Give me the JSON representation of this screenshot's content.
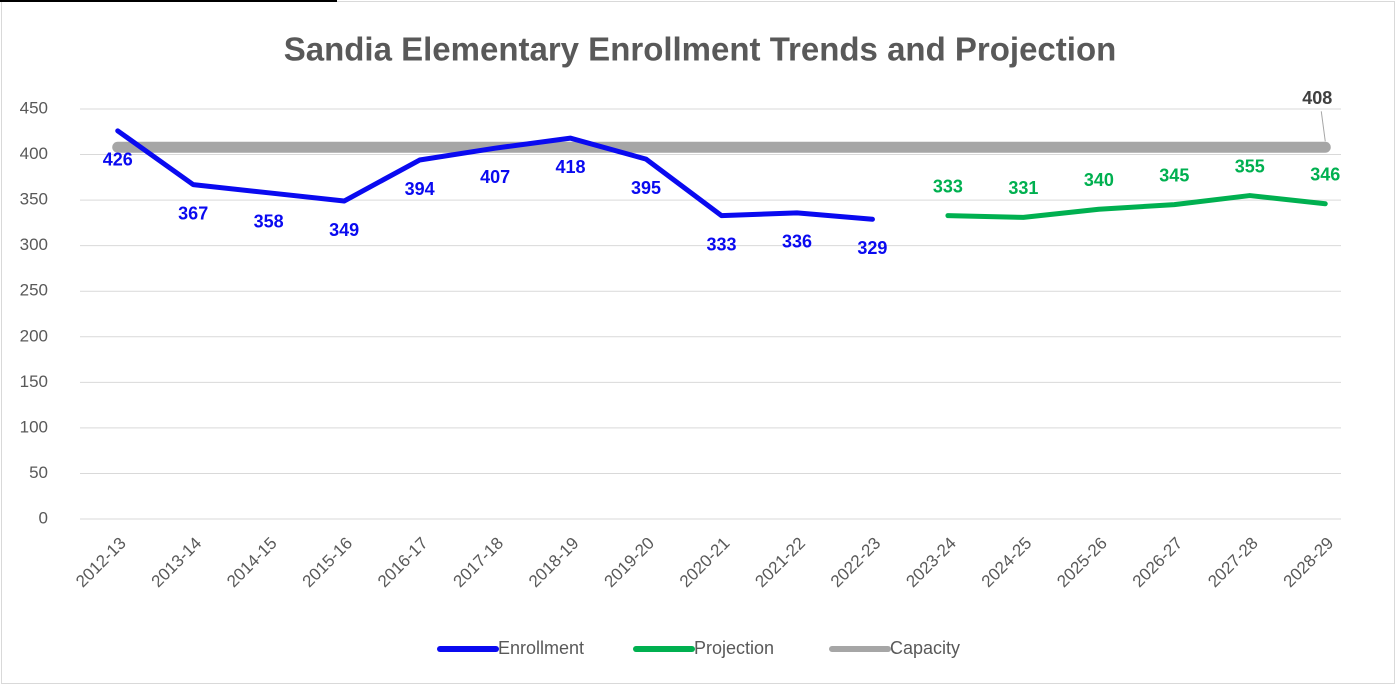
{
  "chart_data": {
    "type": "line",
    "title": "Sandia Elementary Enrollment Trends and Projection",
    "categories": [
      "2012-13",
      "2013-14",
      "2014-15",
      "2015-16",
      "2016-17",
      "2017-18",
      "2018-19",
      "2019-20",
      "2020-21",
      "2021-22",
      "2022-23",
      "2023-24",
      "2024-25",
      "2025-26",
      "2026-27",
      "2027-28",
      "2028-29"
    ],
    "series": [
      {
        "name": "Enrollment",
        "color": "#0a0af0",
        "data_labels": "all",
        "values": [
          426,
          367,
          358,
          349,
          394,
          407,
          418,
          395,
          333,
          336,
          329,
          null,
          null,
          null,
          null,
          null,
          null
        ]
      },
      {
        "name": "Projection",
        "color": "#00b050",
        "data_labels": "all",
        "values": [
          null,
          null,
          null,
          null,
          null,
          null,
          null,
          null,
          null,
          null,
          null,
          333,
          331,
          340,
          345,
          355,
          346
        ]
      },
      {
        "name": "Capacity",
        "color": "#a6a6a6",
        "data_labels": "last",
        "values": [
          408,
          408,
          408,
          408,
          408,
          408,
          408,
          408,
          408,
          408,
          408,
          408,
          408,
          408,
          408,
          408,
          408
        ]
      }
    ],
    "ylim": [
      0,
      450
    ],
    "yticks": [
      0,
      50,
      100,
      150,
      200,
      250,
      300,
      350,
      400,
      450
    ],
    "grid": true,
    "legend": "bottom"
  }
}
